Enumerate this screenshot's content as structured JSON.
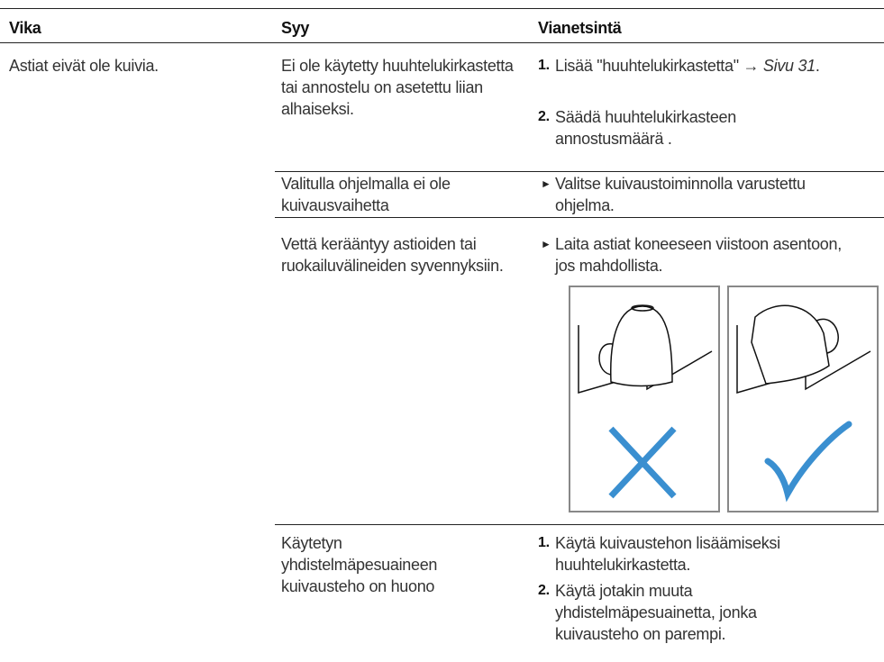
{
  "table": {
    "header": [
      "Vika",
      "Syy",
      "Vianetsintä"
    ],
    "rows": [
      {
        "fault": "Astiat eivät ole kuivia.",
        "causes": [
          {
            "cause": "Ei ole käytetty huuhtelukirkastetta tai annostelu on asetettu liian alhaiseksi.",
            "steps": [
              {
                "number": "1.",
                "text": "Lisää \"huuhtelukirkastetta\" → ",
                "link": "Sivu 31",
                "end": "."
              },
              {
                "number": "2.",
                "text": "Säädä huuhtelukirkasteen annostusmäärä ."
              }
            ]
          },
          {
            "cause": "Valitulla ohjelmalla ei ole kuivausvaihetta",
            "steps": [
              {
                "text": "Valitse kuivaustoiminnolla varustettu ohjelma."
              }
            ]
          },
          {
            "cause": "Vettä kerääntyy astioiden tai ruokailuvälineiden syvennyksiin.",
            "steps": [
              {
                "text": "Laita astiat koneeseen viistoon asentoon, jos mahdollista."
              }
            ]
          },
          {
            "cause": "Käytetyn yhdistelmäpesuaineen kuivausteho on huono",
            "steps": [
              {
                "number": "1.",
                "text": "Käytä kuivaustehon lisäämiseksi huuhtelukirkastetta."
              },
              {
                "number": "2.",
                "text": "Käytä jotakin muuta yhdistelmäpesuainetta, jonka kuivausteho on parempi."
              }
            ]
          }
        ]
      }
    ]
  }
}
